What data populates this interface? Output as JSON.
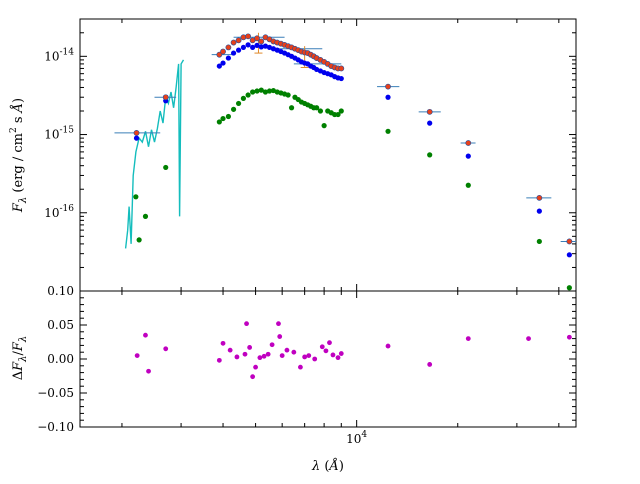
{
  "chart_data": [
    {
      "type": "scatter",
      "title": "",
      "xlabel": "λ (Å)",
      "ylabel": "Fλ (erg / cm² s Å)",
      "xscale": "log",
      "yscale": "log",
      "xlim": [
        1500,
        45000
      ],
      "ylim": [
        1e-17,
        3e-14
      ],
      "x_ticks": [
        {
          "value": 10000,
          "label": "10^4"
        }
      ],
      "y_ticks": [
        {
          "value": 1e-14,
          "label": "10^-14"
        },
        {
          "value": 1e-15,
          "label": "10^-15"
        },
        {
          "value": 1e-16,
          "label": "10^-16"
        }
      ],
      "series": [
        {
          "name": "",
          "kind": "line",
          "color": "#14bdbd",
          "points": [
            [
              2050,
              3.5e-17
            ],
            [
              2080,
              6e-17
            ],
            [
              2100,
              1.2e-16
            ],
            [
              2130,
              4e-17
            ],
            [
              2160,
              3e-16
            ],
            [
              2200,
              6e-16
            ],
            [
              2250,
              9e-16
            ],
            [
              2300,
              8e-16
            ],
            [
              2350,
              1.1e-15
            ],
            [
              2400,
              7e-16
            ],
            [
              2450,
              1.15e-15
            ],
            [
              2500,
              8e-16
            ],
            [
              2550,
              1.2e-15
            ],
            [
              2600,
              2e-15
            ],
            [
              2650,
              1.4e-15
            ],
            [
              2700,
              3e-15
            ],
            [
              2750,
              2.5e-15
            ],
            [
              2800,
              3.5e-15
            ],
            [
              2850,
              2.2e-15
            ],
            [
              2900,
              4e-15
            ],
            [
              2950,
              8e-15
            ],
            [
              2970,
              9e-17
            ],
            [
              3000,
              8e-15
            ],
            [
              3050,
              9e-15
            ]
          ]
        },
        {
          "name": "",
          "kind": "scatter",
          "color": "#e8401a",
          "points": [
            [
              2210,
              1.05e-15
            ],
            [
              2700,
              3e-15
            ],
            [
              3900,
              1.05e-14
            ],
            [
              4000,
              1.15e-14
            ],
            [
              4150,
              1.3e-14
            ],
            [
              4300,
              1.5e-14
            ],
            [
              4450,
              1.6e-14
            ],
            [
              4600,
              1.75e-14
            ],
            [
              4750,
              1.8e-14
            ],
            [
              4900,
              1.6e-14
            ],
            [
              5050,
              1.7e-14
            ],
            [
              5200,
              1.55e-14
            ],
            [
              5350,
              1.75e-14
            ],
            [
              5500,
              1.65e-14
            ],
            [
              5650,
              1.55e-14
            ],
            [
              5800,
              1.5e-14
            ],
            [
              5950,
              1.45e-14
            ],
            [
              6100,
              1.4e-14
            ],
            [
              6250,
              1.35e-14
            ],
            [
              6400,
              1.3e-14
            ],
            [
              6550,
              1.25e-14
            ],
            [
              6700,
              1.2e-14
            ],
            [
              6850,
              1.15e-14
            ],
            [
              7000,
              1.12e-14
            ],
            [
              7150,
              1.1e-14
            ],
            [
              7300,
              1.05e-14
            ],
            [
              7450,
              1e-14
            ],
            [
              7600,
              9.5e-15
            ],
            [
              7800,
              9e-15
            ],
            [
              8000,
              8.5e-15
            ],
            [
              8200,
              8e-15
            ],
            [
              8400,
              7.5e-15
            ],
            [
              8600,
              7.2e-15
            ],
            [
              8800,
              7e-15
            ],
            [
              9000,
              7e-15
            ],
            [
              12400,
              4.1e-15
            ],
            [
              16500,
              1.95e-15
            ],
            [
              21500,
              7.8e-16
            ],
            [
              35000,
              1.55e-16
            ],
            [
              43000,
              4.3e-17
            ]
          ],
          "x_err": [
            [
              1900,
              2600
            ],
            [
              2500,
              2900
            ],
            [
              3700,
              4300
            ],
            [
              4300,
              6100
            ],
            [
              5800,
              7900
            ],
            [
              6500,
              9000
            ],
            [
              11500,
              13400
            ],
            [
              15300,
              17800
            ],
            [
              20400,
              22600
            ],
            [
              32000,
              38000
            ],
            [
              40500,
              46000
            ]
          ]
        },
        {
          "name": "",
          "kind": "scatter",
          "color": "#0000ee",
          "points": [
            [
              2210,
              9e-16
            ],
            [
              2700,
              2.7e-15
            ],
            [
              3900,
              7.5e-15
            ],
            [
              4000,
              8.2e-15
            ],
            [
              4150,
              9.5e-15
            ],
            [
              4300,
              1.1e-14
            ],
            [
              4450,
              1.2e-14
            ],
            [
              4600,
              1.3e-14
            ],
            [
              4750,
              1.4e-14
            ],
            [
              4900,
              1.3e-14
            ],
            [
              5050,
              1.38e-14
            ],
            [
              5200,
              1.32e-14
            ],
            [
              5350,
              1.35e-14
            ],
            [
              5500,
              1.3e-14
            ],
            [
              5650,
              1.25e-14
            ],
            [
              5800,
              1.2e-14
            ],
            [
              5950,
              1.15e-14
            ],
            [
              6100,
              1.1e-14
            ],
            [
              6250,
              1.05e-14
            ],
            [
              6400,
              1e-14
            ],
            [
              6550,
              9.5e-15
            ],
            [
              6700,
              9e-15
            ],
            [
              6850,
              8.5e-15
            ],
            [
              7000,
              8.2e-15
            ],
            [
              7150,
              8e-15
            ],
            [
              7300,
              7.5e-15
            ],
            [
              7450,
              7.2e-15
            ],
            [
              7600,
              6.8e-15
            ],
            [
              7800,
              6.5e-15
            ],
            [
              8000,
              6.2e-15
            ],
            [
              8200,
              6e-15
            ],
            [
              8400,
              5.8e-15
            ],
            [
              8600,
              5.5e-15
            ],
            [
              8800,
              5.3e-15
            ],
            [
              9000,
              5.2e-15
            ],
            [
              12400,
              3e-15
            ],
            [
              16500,
              1.4e-15
            ],
            [
              21500,
              5.3e-16
            ],
            [
              35000,
              1.05e-16
            ],
            [
              43000,
              2.9e-17
            ]
          ]
        },
        {
          "name": "",
          "kind": "scatter",
          "color": "#008000",
          "points": [
            [
              2200,
              1.6e-16
            ],
            [
              2250,
              4.5e-17
            ],
            [
              2350,
              9e-17
            ],
            [
              2700,
              3.8e-16
            ],
            [
              3900,
              1.45e-15
            ],
            [
              4000,
              1.6e-15
            ],
            [
              4150,
              1.7e-15
            ],
            [
              4300,
              2.1e-15
            ],
            [
              4450,
              2.5e-15
            ],
            [
              4600,
              2.9e-15
            ],
            [
              4750,
              3.2e-15
            ],
            [
              4900,
              3.5e-15
            ],
            [
              5050,
              3.6e-15
            ],
            [
              5200,
              3.7e-15
            ],
            [
              5350,
              3.5e-15
            ],
            [
              5500,
              3.6e-15
            ],
            [
              5650,
              3.65e-15
            ],
            [
              5800,
              3.5e-15
            ],
            [
              5950,
              3.4e-15
            ],
            [
              6100,
              3.3e-15
            ],
            [
              6250,
              3.2e-15
            ],
            [
              6400,
              2.2e-15
            ],
            [
              6550,
              3e-15
            ],
            [
              6700,
              2.8e-15
            ],
            [
              6850,
              2.6e-15
            ],
            [
              7000,
              2.5e-15
            ],
            [
              7150,
              2.4e-15
            ],
            [
              7300,
              2.3e-15
            ],
            [
              7450,
              2.2e-15
            ],
            [
              7600,
              2.2e-15
            ],
            [
              7800,
              2e-15
            ],
            [
              8000,
              1.3e-15
            ],
            [
              8200,
              2e-15
            ],
            [
              8400,
              1.9e-15
            ],
            [
              8600,
              1.8e-15
            ],
            [
              8800,
              1.8e-15
            ],
            [
              9000,
              2e-15
            ],
            [
              12400,
              1.1e-15
            ],
            [
              16500,
              5.5e-16
            ],
            [
              21500,
              2.25e-16
            ],
            [
              35000,
              4.3e-17
            ],
            [
              43000,
              1.1e-17
            ]
          ]
        }
      ],
      "y_err": [
        {
          "x": 5100,
          "y": 1.6e-14,
          "low": 1.1e-14,
          "high": 2e-14
        },
        {
          "x": 7000,
          "y": 1.15e-14,
          "low": 7.2e-15,
          "high": 1.35e-14
        }
      ]
    },
    {
      "type": "scatter",
      "title": "",
      "xlabel": "λ (Å)",
      "ylabel": "ΔFλ/Fλ",
      "xscale": "log",
      "xlim": [
        1500,
        45000
      ],
      "ylim": [
        -0.1,
        0.1
      ],
      "y_ticks": [
        {
          "value": 0.1,
          "label": "0.10"
        },
        {
          "value": 0.05,
          "label": "0.05"
        },
        {
          "value": 0.0,
          "label": "0.00"
        },
        {
          "value": -0.05,
          "label": "−0.05"
        },
        {
          "value": -0.1,
          "label": "−0.10"
        }
      ],
      "series": [
        {
          "name": "",
          "color": "#c000c0",
          "points": [
            [
              2220,
              0.005
            ],
            [
              2350,
              0.035
            ],
            [
              2400,
              -0.018
            ],
            [
              2700,
              0.015
            ],
            [
              3900,
              -0.002
            ],
            [
              4000,
              0.023
            ],
            [
              4200,
              0.013
            ],
            [
              4400,
              0.003
            ],
            [
              4650,
              0.007
            ],
            [
              4700,
              0.052
            ],
            [
              4800,
              0.017
            ],
            [
              4900,
              -0.026
            ],
            [
              5000,
              -0.012
            ],
            [
              5150,
              0.002
            ],
            [
              5300,
              0.004
            ],
            [
              5450,
              0.007
            ],
            [
              5600,
              0.021
            ],
            [
              5850,
              0.052
            ],
            [
              5900,
              0.033
            ],
            [
              6000,
              0.005
            ],
            [
              6200,
              0.013
            ],
            [
              6500,
              0.01
            ],
            [
              6800,
              -0.012
            ],
            [
              7000,
              0.003
            ],
            [
              7200,
              0.005
            ],
            [
              7500,
              0.0
            ],
            [
              7900,
              0.018
            ],
            [
              8100,
              0.012
            ],
            [
              8300,
              0.024
            ],
            [
              8500,
              0.006
            ],
            [
              8800,
              0.002
            ],
            [
              9000,
              0.008
            ],
            [
              12400,
              0.019
            ],
            [
              16500,
              -0.008
            ],
            [
              21500,
              0.03
            ],
            [
              32500,
              0.03
            ],
            [
              43000,
              0.032
            ]
          ]
        }
      ]
    }
  ]
}
